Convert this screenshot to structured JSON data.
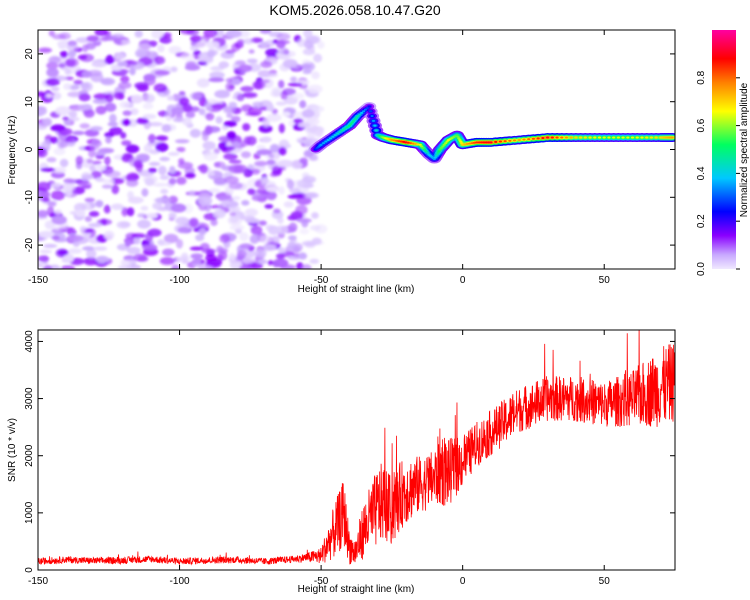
{
  "title": "KOM5.2026.058.10.47.G20",
  "chart_data": [
    {
      "type": "heatmap",
      "xlabel": "Height of straight line (km)",
      "ylabel": "Frequency (Hz)",
      "xlim": [
        -150,
        75
      ],
      "ylim": [
        -25,
        25
      ],
      "x_ticks": [
        -150,
        -100,
        -50,
        0,
        50
      ],
      "y_ticks": [
        -20,
        -10,
        0,
        10,
        20
      ],
      "colorbar": {
        "label": "Normalized spectral amplitude",
        "range": [
          0,
          1
        ],
        "ticks": [
          "0.0",
          "0.2",
          "0.4",
          "0.6",
          "0.8"
        ],
        "colormap": "rainbow",
        "colors": [
          "#f0e8ff",
          "#8a00ff",
          "#0000ff",
          "#00c8ff",
          "#00ff60",
          "#ffff00",
          "#ff8000",
          "#ff0000",
          "#ff00a0"
        ]
      },
      "noise_region": {
        "x_range": [
          -150,
          -50
        ],
        "y_range": [
          -25,
          25
        ],
        "amplitude_max": 0.15
      },
      "ridge": {
        "x": [
          -52,
          -50,
          -45,
          -40,
          -37,
          -33,
          -30,
          -28,
          -25,
          -20,
          -15,
          -12,
          -10,
          -8,
          -5,
          -2,
          0,
          5,
          10,
          20,
          30,
          40,
          50,
          60,
          70,
          74
        ],
        "y": [
          0,
          1,
          3,
          5,
          7,
          9,
          3,
          2.5,
          2,
          1.5,
          1,
          -1,
          -2,
          0,
          2,
          3,
          1,
          1.5,
          1.5,
          2,
          2.5,
          2.5,
          2.5,
          2.5,
          2.5,
          2.5
        ],
        "amplitude": [
          0.2,
          0.3,
          0.35,
          0.45,
          0.4,
          0.2,
          0.4,
          0.55,
          0.7,
          0.85,
          0.6,
          0.35,
          0.3,
          0.5,
          0.6,
          0.5,
          0.65,
          0.8,
          0.85,
          0.7,
          0.85,
          0.65,
          0.6,
          0.6,
          0.65,
          0.7
        ]
      }
    },
    {
      "type": "line",
      "xlabel": "Height of straight line (km)",
      "ylabel": "SNR (10 * v/v)",
      "xlim": [
        -150,
        75
      ],
      "ylim": [
        0,
        4200
      ],
      "x_ticks": [
        -150,
        -100,
        -50,
        0,
        50
      ],
      "y_ticks": [
        0,
        1000,
        2000,
        3000,
        4000
      ],
      "color": "#ff0000",
      "series": [
        {
          "x": [
            -150,
            -140,
            -130,
            -120,
            -110,
            -100,
            -90,
            -80,
            -70,
            -60,
            -55,
            -50,
            -45,
            -42,
            -40,
            -38,
            -35,
            -30,
            -28,
            -25,
            -22,
            -20,
            -15,
            -10,
            -8,
            -5,
            0,
            5,
            10,
            15,
            20,
            25,
            30,
            35,
            40,
            45,
            50,
            55,
            60,
            65,
            70,
            75
          ],
          "y": [
            150,
            180,
            160,
            170,
            190,
            150,
            170,
            180,
            150,
            190,
            220,
            250,
            700,
            1000,
            400,
            300,
            700,
            1100,
            1200,
            1000,
            1300,
            1400,
            1500,
            1600,
            1800,
            1700,
            1900,
            2200,
            2400,
            2600,
            2800,
            2900,
            3000,
            3000,
            3000,
            2950,
            2900,
            2950,
            3000,
            3100,
            3200,
            3300
          ],
          "noise_amplitude": [
            60,
            60,
            60,
            60,
            60,
            60,
            60,
            60,
            60,
            60,
            80,
            150,
            500,
            600,
            300,
            250,
            500,
            700,
            700,
            600,
            600,
            600,
            500,
            500,
            700,
            600,
            450,
            400,
            400,
            400,
            400,
            400,
            400,
            400,
            400,
            400,
            400,
            450,
            500,
            600,
            700,
            700
          ]
        }
      ]
    }
  ]
}
